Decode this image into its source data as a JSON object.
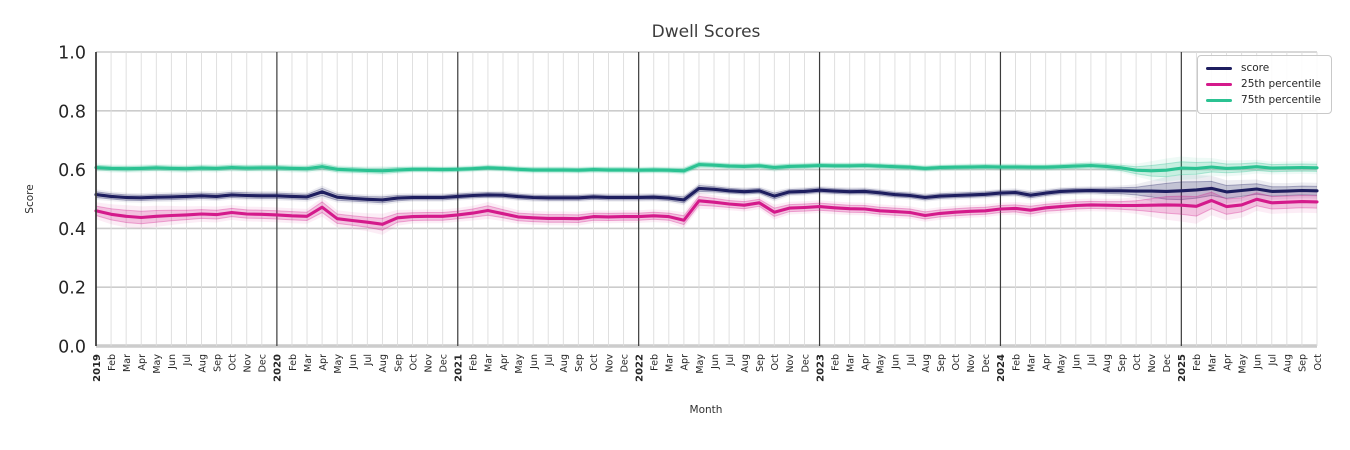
{
  "title": "Dwell Scores",
  "legend": {
    "items": [
      {
        "label": "score",
        "color": "#1e1e5f"
      },
      {
        "label": "25th percentile",
        "color": "#d41a8b"
      },
      {
        "label": "75th percentile",
        "color": "#2bc292"
      }
    ]
  },
  "chart_data": {
    "type": "line",
    "title": "Dwell Scores",
    "xlabel": "Month",
    "ylabel": "Score",
    "ylim": [
      0.0,
      1.0
    ],
    "yticks": [
      "0.0",
      "0.2",
      "0.4",
      "0.6",
      "0.8",
      "1.0"
    ],
    "grid": "on",
    "legend_position": "upper right",
    "x_labels": [
      "2019",
      "Feb",
      "Mar",
      "Apr",
      "May",
      "Jun",
      "Jul",
      "Aug",
      "Sep",
      "Oct",
      "Nov",
      "Dec",
      "2020",
      "Feb",
      "Mar",
      "Apr",
      "May",
      "Jun",
      "Jul",
      "Aug",
      "Sep",
      "Oct",
      "Nov",
      "Dec",
      "2021",
      "Feb",
      "Mar",
      "Apr",
      "May",
      "Jun",
      "Jul",
      "Aug",
      "Sep",
      "Oct",
      "Nov",
      "Dec",
      "2022",
      "Feb",
      "Mar",
      "Apr",
      "May",
      "Jun",
      "Jul",
      "Aug",
      "Sep",
      "Oct",
      "Nov",
      "Dec",
      "2023",
      "Feb",
      "Mar",
      "Apr",
      "May",
      "Jun",
      "Jul",
      "Aug",
      "Sep",
      "Oct",
      "Nov",
      "Dec",
      "2024",
      "Feb",
      "Mar",
      "Apr",
      "May",
      "Jun",
      "Jul",
      "Aug",
      "Sep",
      "Oct",
      "Nov",
      "Dec",
      "2025",
      "Feb",
      "Mar",
      "Apr",
      "May",
      "Jun",
      "Jul",
      "Aug",
      "Sep",
      "Oct"
    ],
    "year_start_indices": [
      0,
      12,
      24,
      36,
      48,
      60,
      72
    ],
    "series": [
      {
        "name": "score",
        "color": "#1e1e5f",
        "values": [
          0.515,
          0.509,
          0.505,
          0.504,
          0.506,
          0.507,
          0.509,
          0.511,
          0.509,
          0.514,
          0.512,
          0.511,
          0.511,
          0.509,
          0.507,
          0.524,
          0.506,
          0.502,
          0.499,
          0.497,
          0.503,
          0.505,
          0.505,
          0.505,
          0.509,
          0.512,
          0.514,
          0.513,
          0.508,
          0.505,
          0.504,
          0.504,
          0.504,
          0.507,
          0.505,
          0.505,
          0.505,
          0.506,
          0.503,
          0.497,
          0.536,
          0.533,
          0.528,
          0.525,
          0.528,
          0.51,
          0.524,
          0.526,
          0.53,
          0.527,
          0.525,
          0.526,
          0.521,
          0.515,
          0.512,
          0.505,
          0.51,
          0.512,
          0.514,
          0.516,
          0.52,
          0.522,
          0.513,
          0.52,
          0.526,
          0.528,
          0.529,
          0.528,
          0.528,
          0.527,
          0.527,
          0.526,
          0.528,
          0.531,
          0.536,
          0.524,
          0.529,
          0.534,
          0.526,
          0.527,
          0.529,
          0.528
        ],
        "band_halfwidth": [
          0.01,
          0.009,
          0.009,
          0.009,
          0.009,
          0.009,
          0.009,
          0.009,
          0.009,
          0.009,
          0.009,
          0.009,
          0.009,
          0.009,
          0.009,
          0.012,
          0.01,
          0.009,
          0.009,
          0.01,
          0.009,
          0.008,
          0.008,
          0.008,
          0.008,
          0.008,
          0.008,
          0.008,
          0.008,
          0.008,
          0.008,
          0.008,
          0.008,
          0.008,
          0.008,
          0.008,
          0.008,
          0.008,
          0.008,
          0.01,
          0.01,
          0.009,
          0.008,
          0.008,
          0.008,
          0.01,
          0.008,
          0.008,
          0.008,
          0.008,
          0.008,
          0.008,
          0.008,
          0.008,
          0.008,
          0.008,
          0.008,
          0.008,
          0.008,
          0.008,
          0.008,
          0.008,
          0.009,
          0.008,
          0.008,
          0.008,
          0.008,
          0.009,
          0.01,
          0.013,
          0.02,
          0.027,
          0.03,
          0.028,
          0.024,
          0.022,
          0.02,
          0.018,
          0.016,
          0.015,
          0.015,
          0.015
        ]
      },
      {
        "name": "25th percentile",
        "color": "#d41a8b",
        "values": [
          0.46,
          0.448,
          0.441,
          0.437,
          0.441,
          0.444,
          0.446,
          0.449,
          0.447,
          0.454,
          0.449,
          0.448,
          0.446,
          0.443,
          0.441,
          0.472,
          0.433,
          0.427,
          0.421,
          0.414,
          0.436,
          0.44,
          0.441,
          0.441,
          0.446,
          0.452,
          0.461,
          0.45,
          0.439,
          0.436,
          0.434,
          0.434,
          0.433,
          0.44,
          0.439,
          0.44,
          0.44,
          0.443,
          0.44,
          0.428,
          0.494,
          0.489,
          0.483,
          0.479,
          0.487,
          0.455,
          0.469,
          0.471,
          0.474,
          0.47,
          0.467,
          0.466,
          0.46,
          0.457,
          0.454,
          0.444,
          0.451,
          0.455,
          0.458,
          0.46,
          0.466,
          0.468,
          0.462,
          0.47,
          0.474,
          0.478,
          0.48,
          0.479,
          0.478,
          0.478,
          0.479,
          0.48,
          0.479,
          0.475,
          0.495,
          0.474,
          0.48,
          0.499,
          0.487,
          0.489,
          0.491,
          0.49
        ],
        "band_halfwidth": [
          0.016,
          0.019,
          0.021,
          0.021,
          0.02,
          0.018,
          0.016,
          0.015,
          0.015,
          0.014,
          0.014,
          0.014,
          0.014,
          0.014,
          0.014,
          0.018,
          0.016,
          0.016,
          0.017,
          0.02,
          0.015,
          0.013,
          0.013,
          0.013,
          0.013,
          0.014,
          0.016,
          0.014,
          0.013,
          0.013,
          0.013,
          0.013,
          0.013,
          0.012,
          0.012,
          0.012,
          0.012,
          0.012,
          0.012,
          0.015,
          0.015,
          0.013,
          0.012,
          0.012,
          0.012,
          0.014,
          0.012,
          0.012,
          0.012,
          0.012,
          0.012,
          0.012,
          0.012,
          0.012,
          0.012,
          0.012,
          0.012,
          0.012,
          0.012,
          0.012,
          0.012,
          0.012,
          0.013,
          0.012,
          0.012,
          0.012,
          0.012,
          0.012,
          0.013,
          0.016,
          0.022,
          0.028,
          0.031,
          0.033,
          0.028,
          0.026,
          0.024,
          0.022,
          0.021,
          0.021,
          0.021,
          0.021
        ]
      },
      {
        "name": "75th percentile",
        "color": "#2bc292",
        "values": [
          0.607,
          0.604,
          0.603,
          0.604,
          0.606,
          0.604,
          0.603,
          0.605,
          0.604,
          0.607,
          0.605,
          0.606,
          0.606,
          0.604,
          0.603,
          0.61,
          0.601,
          0.599,
          0.597,
          0.596,
          0.599,
          0.601,
          0.601,
          0.6,
          0.601,
          0.603,
          0.606,
          0.604,
          0.601,
          0.599,
          0.599,
          0.599,
          0.598,
          0.6,
          0.599,
          0.599,
          0.598,
          0.599,
          0.598,
          0.596,
          0.617,
          0.615,
          0.612,
          0.611,
          0.613,
          0.607,
          0.611,
          0.612,
          0.614,
          0.613,
          0.613,
          0.614,
          0.612,
          0.61,
          0.608,
          0.604,
          0.607,
          0.608,
          0.609,
          0.61,
          0.609,
          0.609,
          0.608,
          0.608,
          0.61,
          0.612,
          0.614,
          0.611,
          0.606,
          0.598,
          0.596,
          0.598,
          0.605,
          0.604,
          0.609,
          0.604,
          0.606,
          0.61,
          0.605,
          0.606,
          0.607,
          0.606
        ],
        "band_halfwidth": [
          0.008,
          0.008,
          0.008,
          0.008,
          0.008,
          0.008,
          0.008,
          0.008,
          0.008,
          0.008,
          0.008,
          0.008,
          0.008,
          0.008,
          0.008,
          0.009,
          0.008,
          0.008,
          0.008,
          0.009,
          0.008,
          0.007,
          0.007,
          0.007,
          0.007,
          0.007,
          0.007,
          0.007,
          0.007,
          0.007,
          0.007,
          0.007,
          0.007,
          0.007,
          0.007,
          0.007,
          0.007,
          0.007,
          0.007,
          0.008,
          0.008,
          0.007,
          0.007,
          0.007,
          0.007,
          0.008,
          0.007,
          0.007,
          0.007,
          0.007,
          0.007,
          0.007,
          0.007,
          0.007,
          0.007,
          0.007,
          0.007,
          0.007,
          0.007,
          0.007,
          0.007,
          0.007,
          0.007,
          0.007,
          0.007,
          0.008,
          0.008,
          0.008,
          0.009,
          0.012,
          0.018,
          0.022,
          0.022,
          0.02,
          0.017,
          0.015,
          0.014,
          0.013,
          0.012,
          0.012,
          0.012,
          0.012
        ]
      }
    ]
  }
}
